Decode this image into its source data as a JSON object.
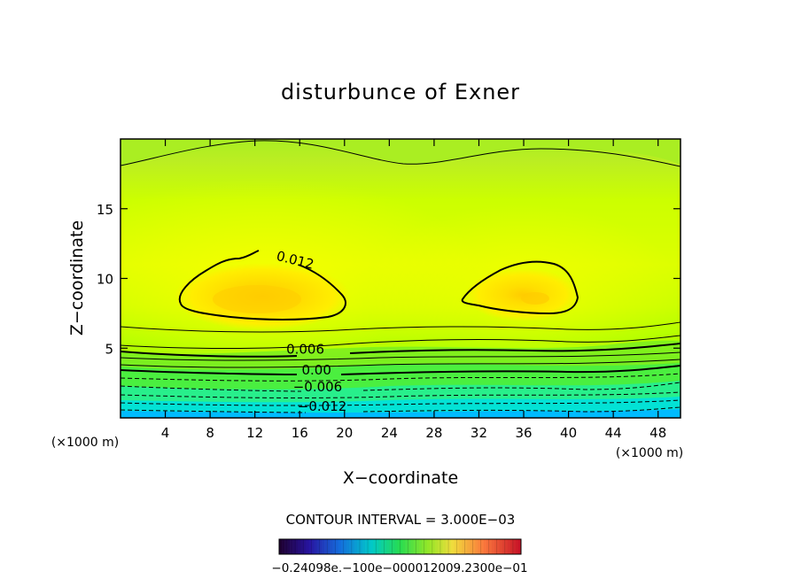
{
  "chart_data": {
    "type": "contour",
    "title": "disturbunce of Exner",
    "xlabel": "X−coordinate",
    "ylabel": "Z−coordinate",
    "x_unit_left": "(×1000 m)",
    "x_unit_right": "(×1000 m)",
    "xlim": [
      0,
      50
    ],
    "ylim": [
      0,
      20
    ],
    "xticks": [
      4,
      8,
      12,
      16,
      20,
      24,
      28,
      32,
      36,
      40,
      44,
      48
    ],
    "yticks": [
      5,
      10,
      15
    ],
    "contour_labels": [
      {
        "text": "0.012",
        "x": 15.5,
        "y": 11.0
      },
      {
        "text": "0.006",
        "x": 16.5,
        "y": 4.6
      },
      {
        "text": "0.00",
        "x": 17.5,
        "y": 3.1
      },
      {
        "text": "−0.006",
        "x": 17.6,
        "y": 1.9
      },
      {
        "text": "−0.012",
        "x": 18.0,
        "y": 0.5
      }
    ],
    "contour_interval": "CONTOUR INTERVAL = 3.000E−03",
    "colorbar_labels": [
      "−0.240",
      "−0.120",
      "0.00",
      "0.120",
      "0.240"
    ],
    "colorbar_label_text": "−0.24098e.−100e−000012009.2300e−01",
    "colors": {
      "cyan": "#00ccff",
      "green": "#33dd00",
      "yellowgreen": "#ccff00",
      "yellow": "#ffee00",
      "orange": "#ffcc00"
    }
  }
}
